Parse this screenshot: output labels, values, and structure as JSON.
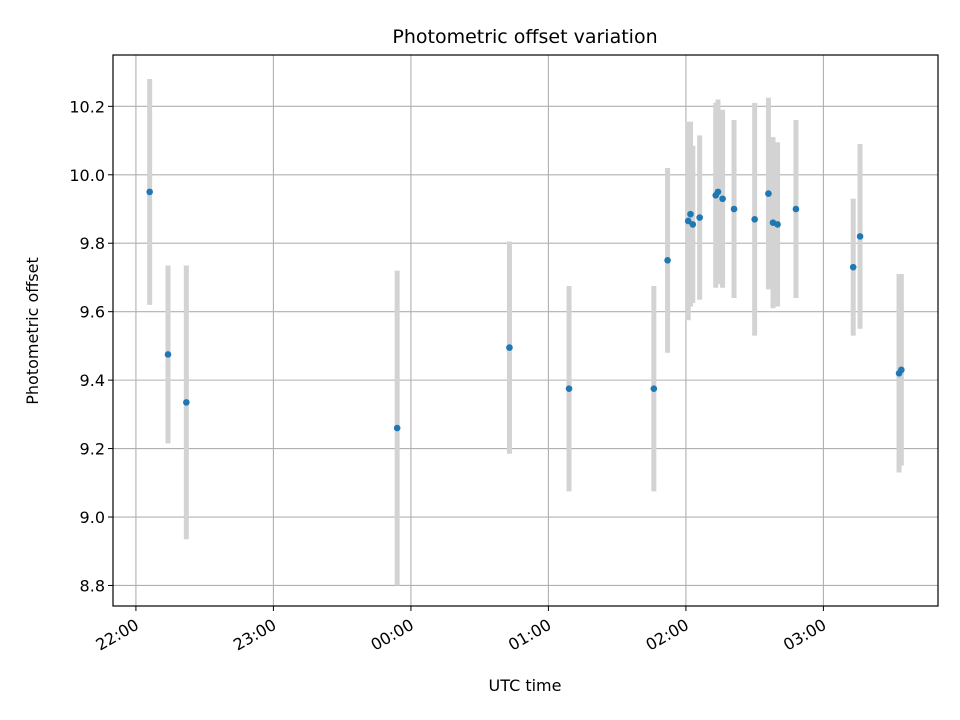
{
  "chart_data": {
    "type": "scatter",
    "title": "Photometric offset variation",
    "xlabel": "UTC time",
    "ylabel": "Photometric offset",
    "x_tick_labels": [
      "22:00",
      "23:00",
      "00:00",
      "01:00",
      "02:00",
      "03:00"
    ],
    "x_tick_minutes": [
      1320,
      1380,
      1440,
      1500,
      1560,
      1620
    ],
    "xlim_minutes": [
      1310,
      1670
    ],
    "y_ticks": [
      8.8,
      9.0,
      9.2,
      9.4,
      9.6,
      9.8,
      10.0,
      10.2
    ],
    "y_tick_labels": [
      "8.8",
      "9.0",
      "9.2",
      "9.4",
      "9.6",
      "9.8",
      "10.0",
      "10.2"
    ],
    "ylim": [
      8.74,
      10.35
    ],
    "grid": true,
    "colors": {
      "point": "#1f77b4",
      "errorbar": "#d3d3d3",
      "grid": "#b0b0b0",
      "frame": "#000000"
    },
    "points": [
      {
        "time": "22:06",
        "y": 9.95,
        "yerr": 0.33
      },
      {
        "time": "22:14",
        "y": 9.475,
        "yerr": 0.26
      },
      {
        "time": "22:22",
        "y": 9.335,
        "yerr": 0.4
      },
      {
        "time": "23:54",
        "y": 9.26,
        "yerr": 0.46
      },
      {
        "time": "00:43",
        "y": 9.495,
        "yerr": 0.31
      },
      {
        "time": "01:09",
        "y": 9.375,
        "yerr": 0.3
      },
      {
        "time": "01:46",
        "y": 9.375,
        "yerr": 0.3
      },
      {
        "time": "01:52",
        "y": 9.75,
        "yerr": 0.27
      },
      {
        "time": "02:01",
        "y": 9.865,
        "yerr": 0.29
      },
      {
        "time": "02:02",
        "y": 9.885,
        "yerr": 0.27
      },
      {
        "time": "02:03",
        "y": 9.855,
        "yerr": 0.23
      },
      {
        "time": "02:06",
        "y": 9.875,
        "yerr": 0.24
      },
      {
        "time": "02:13",
        "y": 9.94,
        "yerr": 0.27
      },
      {
        "time": "02:14",
        "y": 9.95,
        "yerr": 0.27
      },
      {
        "time": "02:16",
        "y": 9.93,
        "yerr": 0.26
      },
      {
        "time": "02:21",
        "y": 9.9,
        "yerr": 0.26
      },
      {
        "time": "02:30",
        "y": 9.87,
        "yerr": 0.34
      },
      {
        "time": "02:36",
        "y": 9.945,
        "yerr": 0.28
      },
      {
        "time": "02:38",
        "y": 9.86,
        "yerr": 0.25
      },
      {
        "time": "02:40",
        "y": 9.855,
        "yerr": 0.24
      },
      {
        "time": "02:48",
        "y": 9.9,
        "yerr": 0.26
      },
      {
        "time": "03:13",
        "y": 9.73,
        "yerr": 0.2
      },
      {
        "time": "03:16",
        "y": 9.82,
        "yerr": 0.27
      },
      {
        "time": "03:33",
        "y": 9.42,
        "yerr": 0.29
      },
      {
        "time": "03:34",
        "y": 9.43,
        "yerr": 0.28
      }
    ]
  }
}
